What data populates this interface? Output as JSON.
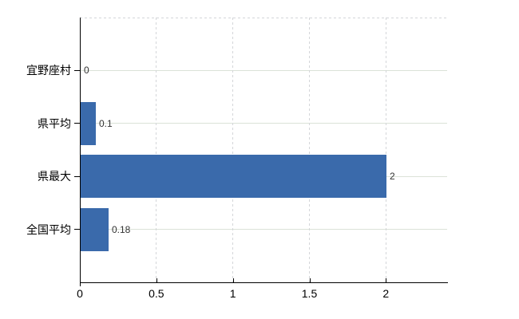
{
  "chart_data": {
    "type": "bar",
    "orientation": "horizontal",
    "title": "",
    "categories": [
      "宜野座村",
      "県平均",
      "県最大",
      "全国平均"
    ],
    "values": [
      0,
      0.1,
      2,
      0.18
    ],
    "data_labels": [
      "0",
      "0.1",
      "2",
      "0.18"
    ],
    "x_ticks": [
      0,
      0.5,
      1,
      1.5,
      2
    ],
    "x_tick_labels": [
      "0",
      "0.5",
      "1",
      "1.5",
      "2"
    ],
    "xlim": [
      0,
      2.4
    ],
    "grid": true,
    "legend": "none",
    "colors": {
      "bar": "#3a6aab",
      "axis": "#000000",
      "h_gridline": "#dbe2d8",
      "v_gridline": "#d4d6d9",
      "top_border": "#d4d6d9",
      "data_label": "#333333",
      "tick_label": "#000000",
      "background": "#ffffff"
    }
  }
}
